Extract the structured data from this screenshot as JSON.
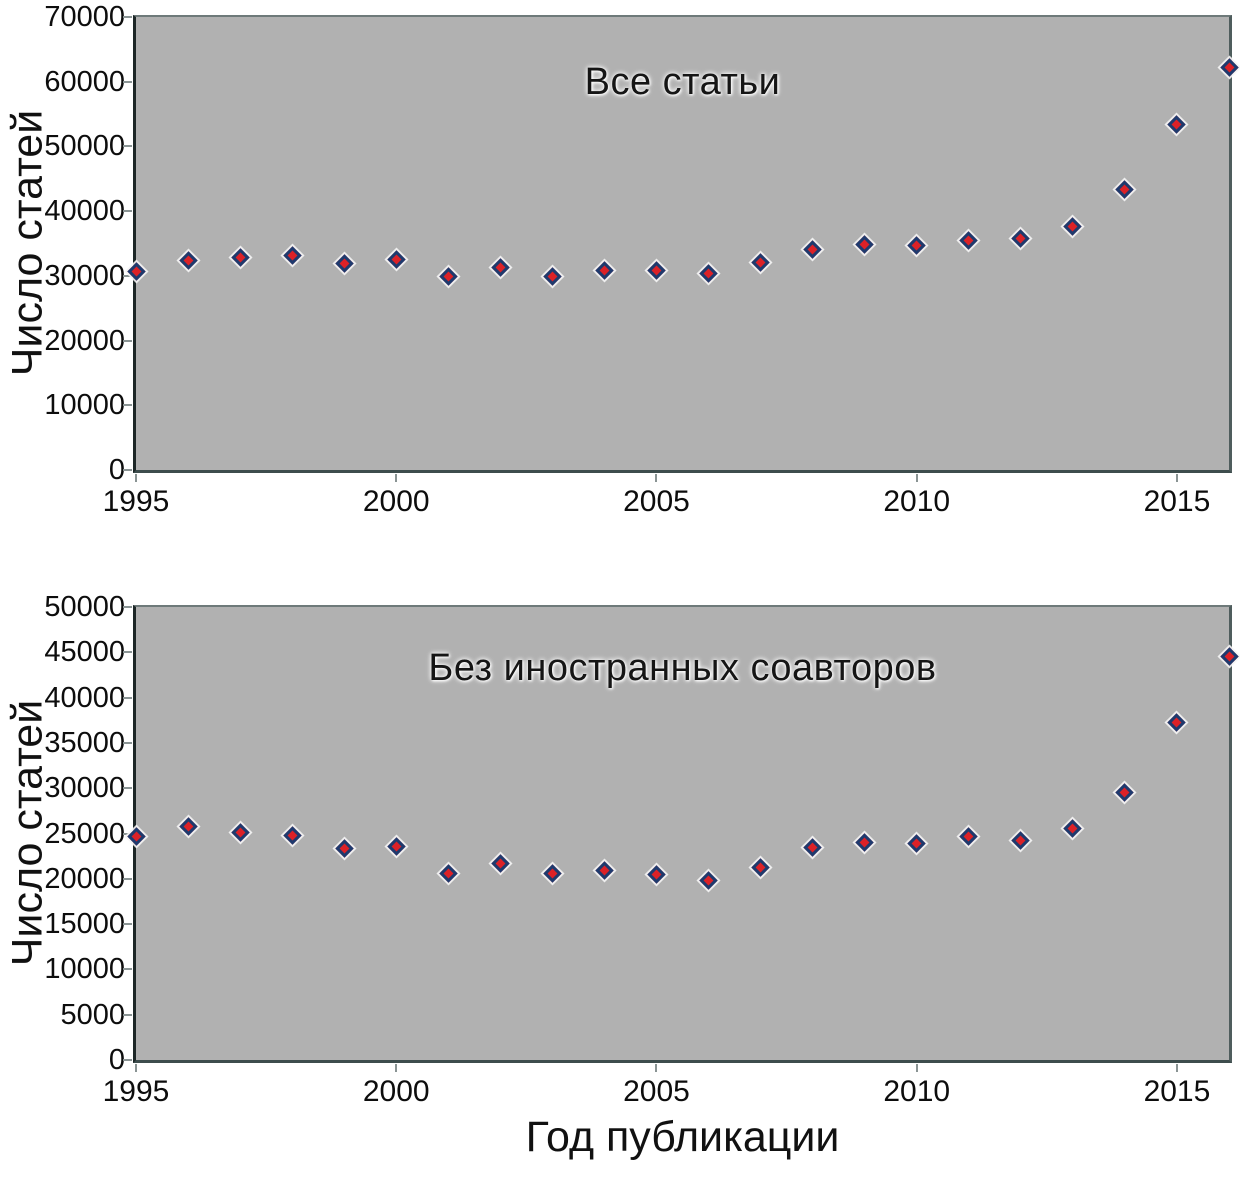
{
  "page": {
    "background": "#ffffff"
  },
  "marker": {
    "fill": "#dc2127",
    "border": "#1e3a6e",
    "halo": "#f0f0f0"
  },
  "chart_data": [
    {
      "type": "scatter",
      "title": "Все статьи",
      "y_axis_title": "Число статей",
      "x_axis_title": "",
      "ylim": [
        0,
        70000
      ],
      "y_ticks": [
        0,
        10000,
        20000,
        30000,
        40000,
        50000,
        60000,
        70000
      ],
      "xlim": [
        1995,
        2016
      ],
      "x_ticks": [
        1995,
        2000,
        2005,
        2010,
        2015
      ],
      "grid": false,
      "legend": "none",
      "plot_bg": "#b1b1b1",
      "years": [
        1995,
        1996,
        1997,
        1998,
        1999,
        2000,
        2001,
        2002,
        2003,
        2004,
        2005,
        2006,
        2007,
        2008,
        2009,
        2010,
        2011,
        2012,
        2013,
        2014,
        2015,
        2016
      ],
      "values": [
        30600,
        32300,
        32800,
        33100,
        31900,
        32500,
        29900,
        31300,
        29900,
        30800,
        30800,
        30300,
        32100,
        34100,
        34800,
        34700,
        35500,
        35700,
        37700,
        43400,
        53400,
        62200
      ]
    },
    {
      "type": "scatter",
      "title": "Без иностранных соавторов",
      "y_axis_title": "Число статей",
      "x_axis_title": "Год публикации",
      "ylim": [
        0,
        50000
      ],
      "y_ticks": [
        0,
        5000,
        10000,
        15000,
        20000,
        25000,
        30000,
        35000,
        40000,
        45000,
        50000
      ],
      "xlim": [
        1995,
        2016
      ],
      "x_ticks": [
        1995,
        2000,
        2005,
        2010,
        2015
      ],
      "grid": false,
      "legend": "none",
      "plot_bg": "#b1b1b1",
      "years": [
        1995,
        1996,
        1997,
        1998,
        1999,
        2000,
        2001,
        2002,
        2003,
        2004,
        2005,
        2006,
        2007,
        2008,
        2009,
        2010,
        2011,
        2012,
        2013,
        2014,
        2015,
        2016
      ],
      "values": [
        24700,
        25800,
        25100,
        24800,
        23300,
        23600,
        20600,
        21700,
        20600,
        20900,
        20500,
        19800,
        21200,
        23500,
        24000,
        23900,
        24700,
        24200,
        25500,
        29500,
        37300,
        44500
      ]
    }
  ]
}
